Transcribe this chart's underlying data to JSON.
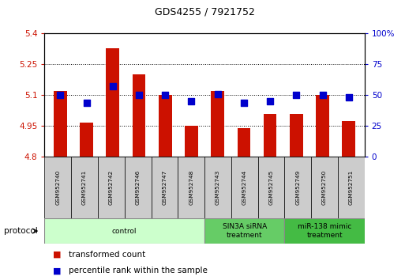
{
  "title": "GDS4255 / 7921752",
  "samples": [
    "GSM952740",
    "GSM952741",
    "GSM952742",
    "GSM952746",
    "GSM952747",
    "GSM952748",
    "GSM952743",
    "GSM952744",
    "GSM952745",
    "GSM952749",
    "GSM952750",
    "GSM952751"
  ],
  "transformed_count": [
    5.12,
    4.965,
    5.33,
    5.2,
    5.1,
    4.952,
    5.12,
    4.94,
    5.01,
    5.01,
    5.1,
    4.975
  ],
  "percentile_rank": [
    50,
    44,
    57,
    50,
    50,
    45,
    51,
    44,
    45,
    50,
    50,
    48
  ],
  "groups": [
    {
      "label": "control",
      "start": 0,
      "end": 6,
      "color": "#ccffcc",
      "border": "#888888"
    },
    {
      "label": "SIN3A siRNA\ntreatment",
      "start": 6,
      "end": 9,
      "color": "#66cc66",
      "border": "#888888"
    },
    {
      "label": "miR-138 mimic\ntreatment",
      "start": 9,
      "end": 12,
      "color": "#44bb44",
      "border": "#888888"
    }
  ],
  "bar_color": "#cc1100",
  "dot_color": "#0000cc",
  "ylim_left": [
    4.8,
    5.4
  ],
  "ylim_right": [
    0,
    100
  ],
  "yticks_left": [
    4.8,
    4.95,
    5.1,
    5.25,
    5.4
  ],
  "yticks_right": [
    0,
    25,
    50,
    75,
    100
  ],
  "ytick_labels_left": [
    "4.8",
    "4.95",
    "5.1",
    "5.25",
    "5.4"
  ],
  "ytick_labels_right": [
    "0",
    "25",
    "50",
    "75",
    "100%"
  ],
  "bar_width": 0.5,
  "dot_size": 35,
  "legend_items": [
    {
      "label": "transformed count",
      "color": "#cc1100"
    },
    {
      "label": "percentile rank within the sample",
      "color": "#0000cc"
    }
  ],
  "protocol_label": "protocol",
  "grid_color": "#000000",
  "sample_box_color": "#cccccc",
  "background_color": "#ffffff"
}
